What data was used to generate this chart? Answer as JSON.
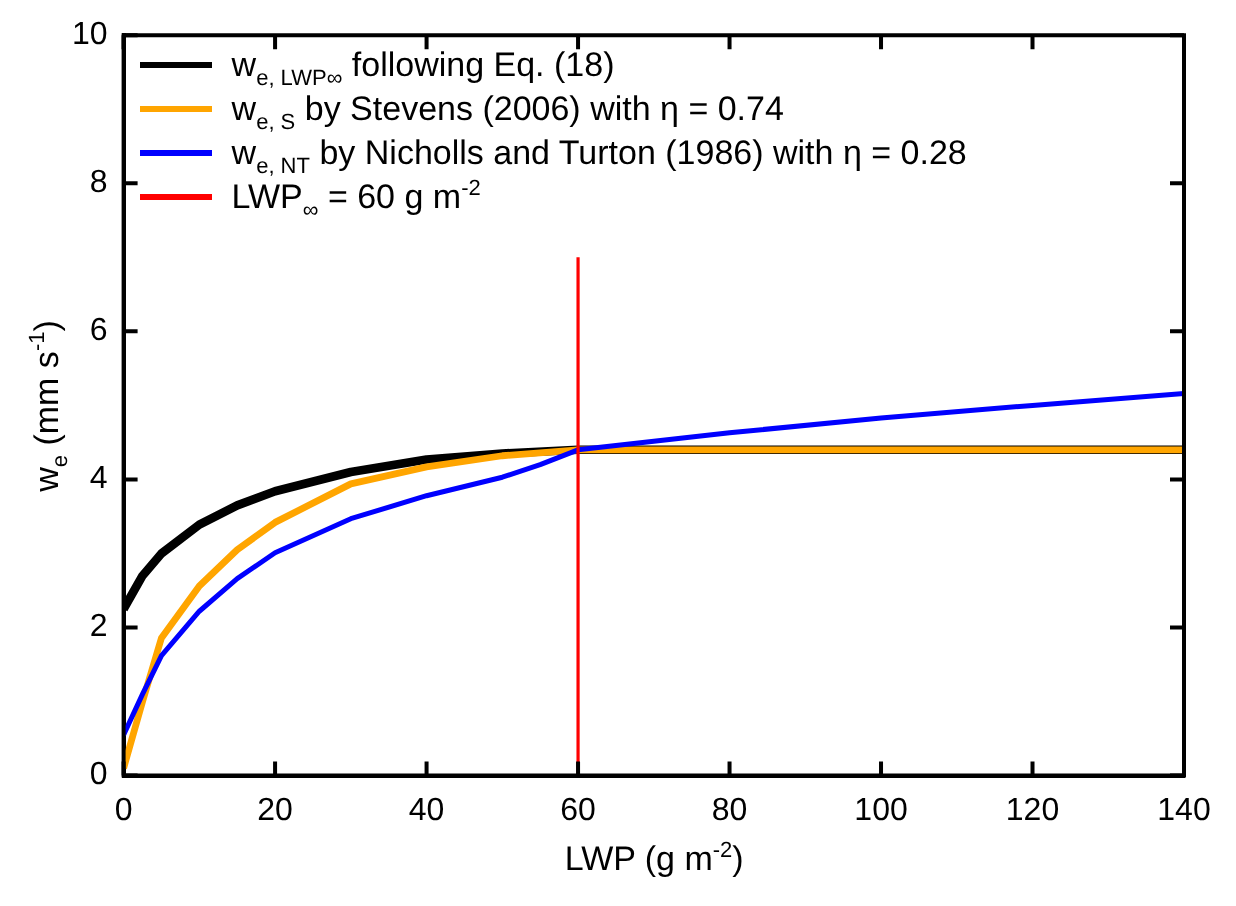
{
  "chart_data": {
    "type": "line",
    "xlabel": "LWP (g m$^{-2}$)",
    "ylabel": "w$_{e}$ (mm s$^{-1}$)",
    "xlim": [
      0,
      140
    ],
    "xticks": [
      0,
      20,
      40,
      60,
      80,
      100,
      120,
      140
    ],
    "ylim": [
      0,
      10
    ],
    "yticks": [
      0,
      2,
      4,
      6,
      8,
      10
    ],
    "grid": false,
    "legend": "top left",
    "marker": "none",
    "line_style": "solid",
    "series": [
      {
        "name": "w$_{e, LWP∞}$ following Eq. (18)",
        "color": "#000000",
        "x": [
          0,
          2.5,
          5,
          10,
          15,
          20,
          30,
          40,
          50,
          60,
          80,
          100,
          120,
          140
        ],
        "values": [
          2.25,
          2.7,
          3.0,
          3.39,
          3.65,
          3.84,
          4.1,
          4.27,
          4.35,
          4.4,
          4.4,
          4.4,
          4.4,
          4.4
        ]
      },
      {
        "name": "w$_{e, S}$ by Stevens (2006) with η = 0.74",
        "color": "#ffa500",
        "x": [
          0,
          2.5,
          5,
          10,
          15,
          20,
          30,
          40,
          50,
          60,
          80,
          100,
          120,
          140
        ],
        "values": [
          0.1,
          1.0,
          1.86,
          2.56,
          3.05,
          3.42,
          3.94,
          4.17,
          4.32,
          4.4,
          4.4,
          4.4,
          4.4,
          4.4
        ]
      },
      {
        "name": "w$_{e, NT}$ by Nicholls and Turton (1986) with η = 0.28",
        "color": "#0000ff",
        "x": [
          0,
          2.5,
          5,
          10,
          15,
          20,
          30,
          40,
          50,
          55,
          60,
          80,
          100,
          120,
          140
        ],
        "values": [
          0.55,
          1.1,
          1.62,
          2.22,
          2.66,
          3.01,
          3.47,
          3.78,
          4.03,
          4.2,
          4.4,
          4.63,
          4.83,
          5.0,
          5.16
        ]
      },
      {
        "name": "LWP$_{∞}$ = 60 g m$^{-2}$",
        "color": "#ff0000",
        "x": [
          60,
          60
        ],
        "values": [
          0,
          7
        ]
      }
    ]
  }
}
